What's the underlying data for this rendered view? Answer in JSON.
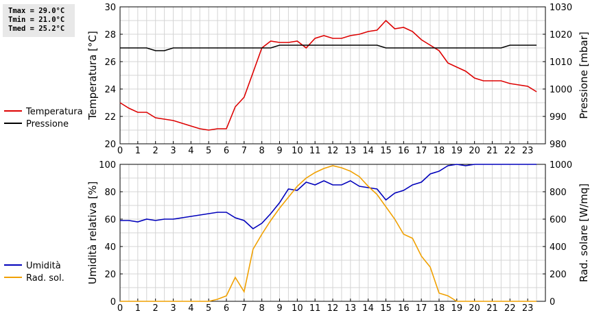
{
  "stats": {
    "tmax": "Tmax = 29.0°C",
    "tmin": "Tmin = 21.0°C",
    "tmed": "Tmed = 25.2°C"
  },
  "chart_data": [
    {
      "type": "line",
      "x_ticks": [
        "0",
        "1",
        "2",
        "3",
        "4",
        "5",
        "6",
        "7",
        "8",
        "9",
        "10",
        "11",
        "12",
        "13",
        "14",
        "15",
        "16",
        "17",
        "18",
        "19",
        "20",
        "21",
        "22",
        "23"
      ],
      "xlim": [
        0,
        24
      ],
      "ylabel_left": "Temperatura [°C]",
      "ylim_left": [
        20,
        30
      ],
      "yticks_left": [
        "20",
        "22",
        "24",
        "26",
        "28",
        "30"
      ],
      "ylabel_right": "Pressione [mbar]",
      "ylim_right": [
        980,
        1030
      ],
      "yticks_right": [
        "980",
        "990",
        "1000",
        "1010",
        "1020",
        "1030"
      ],
      "grid": true,
      "legend_position": "left",
      "series": [
        {
          "name": "Temperatura",
          "axis": "left",
          "color": "#dd0000",
          "x": [
            0,
            0.5,
            1,
            1.5,
            2,
            2.5,
            3,
            3.5,
            4,
            4.5,
            5,
            5.5,
            6,
            6.5,
            7,
            7.5,
            8,
            8.5,
            9,
            9.5,
            10,
            10.5,
            11,
            11.5,
            12,
            12.5,
            13,
            13.5,
            14,
            14.5,
            15,
            15.5,
            16,
            16.5,
            17,
            17.5,
            18,
            18.5,
            19,
            19.5,
            20,
            20.5,
            21,
            21.5,
            22,
            22.5,
            23,
            23.5
          ],
          "y": [
            23.0,
            22.6,
            22.3,
            22.3,
            21.9,
            21.8,
            21.7,
            21.5,
            21.3,
            21.1,
            21.0,
            21.1,
            21.1,
            22.7,
            23.4,
            25.2,
            27.0,
            27.5,
            27.4,
            27.4,
            27.5,
            27.0,
            27.7,
            27.9,
            27.7,
            27.7,
            27.9,
            28.0,
            28.2,
            28.3,
            29.0,
            28.4,
            28.5,
            28.2,
            27.6,
            27.2,
            26.8,
            25.9,
            25.6,
            25.3,
            24.8,
            24.6,
            24.6,
            24.6,
            24.4,
            24.3,
            24.2,
            23.8
          ]
        },
        {
          "name": "Pressione",
          "axis": "right",
          "color": "#000000",
          "x": [
            0,
            0.5,
            1,
            1.5,
            2,
            2.5,
            3,
            3.5,
            4,
            4.5,
            5,
            5.5,
            6,
            6.5,
            7,
            7.5,
            8,
            8.5,
            9,
            9.5,
            10,
            10.5,
            11,
            11.5,
            12,
            12.5,
            13,
            13.5,
            14,
            14.5,
            15,
            15.5,
            16,
            16.5,
            17,
            17.5,
            18,
            18.5,
            19,
            19.5,
            20,
            20.5,
            21,
            21.5,
            22,
            22.5,
            23,
            23.5
          ],
          "y": [
            1015,
            1015,
            1015,
            1015,
            1014,
            1014,
            1015,
            1015,
            1015,
            1015,
            1015,
            1015,
            1015,
            1015,
            1015,
            1015,
            1015,
            1015,
            1016,
            1016,
            1016,
            1016,
            1016,
            1016,
            1016,
            1016,
            1016,
            1016,
            1016,
            1016,
            1015,
            1015,
            1015,
            1015,
            1015,
            1015,
            1015,
            1015,
            1015,
            1015,
            1015,
            1015,
            1015,
            1015,
            1016,
            1016,
            1016,
            1016
          ]
        }
      ]
    },
    {
      "type": "line",
      "x_ticks": [
        "0",
        "1",
        "2",
        "3",
        "4",
        "5",
        "6",
        "7",
        "8",
        "9",
        "10",
        "11",
        "12",
        "13",
        "14",
        "15",
        "16",
        "17",
        "18",
        "19",
        "20",
        "21",
        "22",
        "23"
      ],
      "xlim": [
        0,
        24
      ],
      "ylabel_left": "Umidità relativa [%]",
      "ylim_left": [
        0,
        100
      ],
      "yticks_left": [
        "0",
        "20",
        "40",
        "60",
        "80",
        "100"
      ],
      "ylabel_right": "Rad. solare [W/mq]",
      "ylim_right": [
        0,
        1000
      ],
      "yticks_right": [
        "0",
        "200",
        "400",
        "600",
        "800",
        "1000"
      ],
      "grid": true,
      "legend_position": "left",
      "series": [
        {
          "name": "Umidità",
          "axis": "left",
          "color": "#0000bb",
          "x": [
            0,
            0.5,
            1,
            1.5,
            2,
            2.5,
            3,
            3.5,
            4,
            4.5,
            5,
            5.5,
            6,
            6.5,
            7,
            7.5,
            8,
            8.5,
            9,
            9.5,
            10,
            10.5,
            11,
            11.5,
            12,
            12.5,
            13,
            13.5,
            14,
            14.5,
            15,
            15.5,
            16,
            16.5,
            17,
            17.5,
            18,
            18.5,
            19,
            19.5,
            20,
            20.5,
            21,
            21.5,
            22,
            22.5,
            23,
            23.5
          ],
          "y": [
            59,
            59,
            58,
            60,
            59,
            60,
            60,
            61,
            62,
            63,
            64,
            65,
            65,
            61,
            59,
            53,
            57,
            64,
            72,
            82,
            81,
            87,
            85,
            88,
            85,
            85,
            88,
            84,
            83,
            82,
            74,
            79,
            81,
            85,
            87,
            93,
            95,
            99,
            100,
            99,
            100,
            100,
            100,
            100,
            100,
            100,
            100,
            100
          ]
        },
        {
          "name": "Rad. sol.",
          "axis": "right",
          "color": "#f0a000",
          "x": [
            0,
            0.5,
            1,
            1.5,
            2,
            2.5,
            3,
            3.5,
            4,
            4.5,
            5,
            5.5,
            6,
            6.5,
            7,
            7.5,
            8,
            8.5,
            9,
            9.5,
            10,
            10.5,
            11,
            11.5,
            12,
            12.5,
            13,
            13.5,
            14,
            14.5,
            15,
            15.5,
            16,
            16.5,
            17,
            17.5,
            18,
            18.5,
            19,
            19.5,
            20,
            20.5,
            21,
            21.5,
            22,
            22.5,
            23,
            23.5
          ],
          "y": [
            0,
            0,
            0,
            0,
            0,
            0,
            0,
            0,
            0,
            0,
            0,
            15,
            40,
            175,
            70,
            380,
            490,
            590,
            680,
            760,
            840,
            900,
            940,
            970,
            990,
            975,
            950,
            910,
            840,
            780,
            690,
            600,
            490,
            460,
            330,
            250,
            60,
            40,
            0,
            0,
            0,
            0,
            0,
            0,
            0,
            0,
            0,
            0
          ]
        }
      ]
    }
  ]
}
